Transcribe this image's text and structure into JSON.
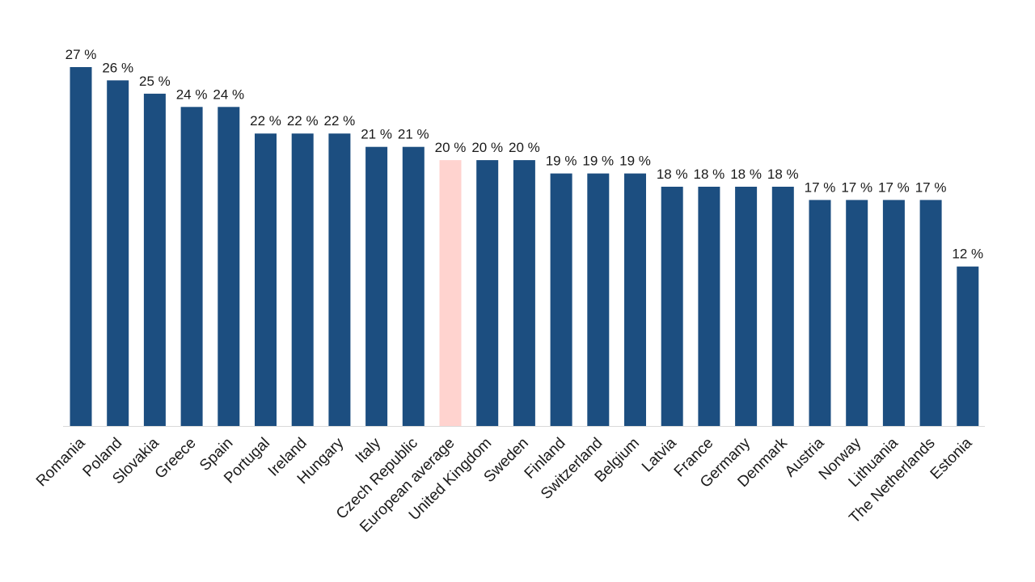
{
  "chart_data": {
    "type": "bar",
    "categories": [
      "Romania",
      "Poland",
      "Slovakia",
      "Greece",
      "Spain",
      "Portugal",
      "Ireland",
      "Hungary",
      "Italy",
      "Czech Republic",
      "European average",
      "United Kingdom",
      "Sweden",
      "Finland",
      "Switzerland",
      "Belgium",
      "Latvia",
      "France",
      "Germany",
      "Denmark",
      "Austria",
      "Norway",
      "Lithuania",
      "The Netherlands",
      "Estonia"
    ],
    "values": [
      27,
      26,
      25,
      24,
      24,
      22,
      22,
      22,
      21,
      21,
      20,
      20,
      20,
      19,
      19,
      19,
      18,
      18,
      18,
      18,
      17,
      17,
      17,
      17,
      12
    ],
    "value_labels": [
      "27 %",
      "26 %",
      "25 %",
      "24 %",
      "24 %",
      "22 %",
      "22 %",
      "22 %",
      "21 %",
      "21 %",
      "20 %",
      "20 %",
      "20 %",
      "19 %",
      "19 %",
      "19 %",
      "18 %",
      "18 %",
      "18 %",
      "18 %",
      "17 %",
      "17 %",
      "17 %",
      "17 %",
      "12 %"
    ],
    "highlight_category": "European average",
    "ylim": [
      0,
      27
    ],
    "grid": false,
    "legend": "none",
    "colors": {
      "bar": "#1c4e80",
      "highlight": "#ffd3cf",
      "axis": "#d9d9d9",
      "text": "#1a1a1a"
    }
  }
}
